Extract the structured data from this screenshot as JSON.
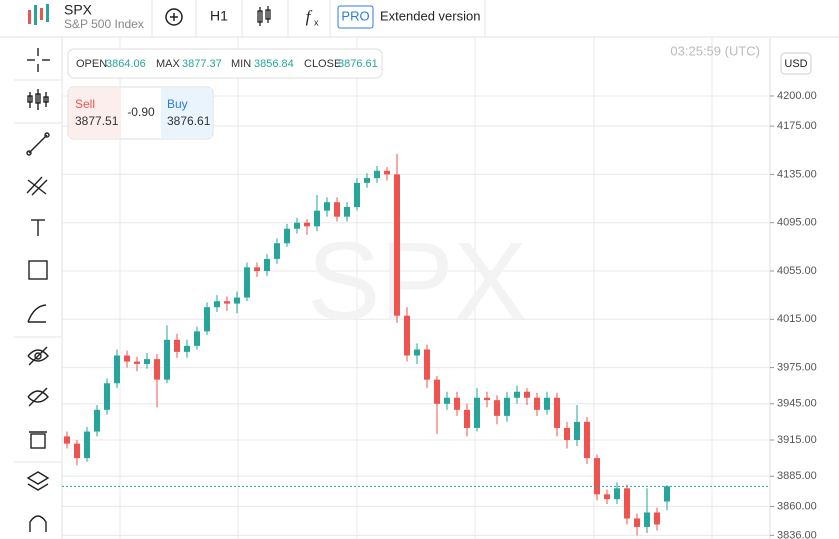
{
  "header": {
    "symbol": "SPX",
    "name": "S&P 500 Index",
    "timeframe": "H1",
    "pro": "PRO",
    "extended": "Extended version"
  },
  "ohlc_labels": {
    "open": "OPEN",
    "max": "MAX",
    "min": "MIN",
    "close": "CLOSE"
  },
  "trade": {
    "sell_label": "Sell",
    "sell": "3877.51",
    "spread": "-0.90",
    "buy_label": "Buy",
    "buy": "3876.61"
  },
  "time": "03:25:59 (UTC)",
  "currency": "USD",
  "chart_data": {
    "type": "candlestick",
    "open": [
      3918,
      3912,
      3900,
      3922,
      3940,
      3962,
      3985,
      3980,
      3978,
      3982,
      3965,
      3998,
      3988,
      3993,
      4005,
      4025,
      4030,
      4028,
      4033,
      4058,
      4055,
      4065,
      4078,
      4090,
      4095,
      4092,
      4105,
      4112,
      4100,
      4108,
      4128,
      4132,
      4138,
      4135,
      4018,
      3985,
      3990,
      3965,
      3945,
      3950,
      3940,
      3925,
      3950,
      3948,
      3935,
      3950,
      3955,
      3950,
      3940,
      3950,
      3925,
      3915,
      3930,
      3900,
      3870,
      3866,
      3875,
      3850,
      3843,
      3855,
      3864.06
    ],
    "high": [
      3922,
      3915,
      3926,
      3944,
      3966,
      3990,
      3989,
      3984,
      3987,
      3986,
      4010,
      4003,
      3998,
      4009,
      4029,
      4035,
      4034,
      4038,
      4062,
      4062,
      4069,
      4082,
      4094,
      4099,
      4098,
      4118,
      4116,
      4116,
      4112,
      4132,
      4136,
      4142,
      4141,
      4152,
      4025,
      3995,
      3994,
      3968,
      3955,
      3955,
      3945,
      3958,
      3955,
      3952,
      3955,
      3960,
      3958,
      3954,
      3955,
      3954,
      3930,
      3944,
      3934,
      3903,
      3874,
      3880,
      3878,
      3854,
      3875,
      3859,
      3877.37
    ],
    "low": [
      3908,
      3894,
      3897,
      3918,
      3936,
      3958,
      3975,
      3972,
      3974,
      3942,
      3962,
      3983,
      3983,
      3990,
      4002,
      4021,
      4022,
      4020,
      4030,
      4050,
      4051,
      4061,
      4075,
      4086,
      4085,
      4088,
      4100,
      4096,
      4096,
      4105,
      4124,
      4128,
      4130,
      4012,
      3980,
      3978,
      3958,
      3920,
      3940,
      3935,
      3918,
      3922,
      3942,
      3928,
      3930,
      3945,
      3944,
      3935,
      3936,
      3918,
      3908,
      3910,
      3895,
      3865,
      3862,
      3862,
      3845,
      3836,
      3838,
      3840,
      3856.84
    ],
    "close": [
      3912,
      3900,
      3922,
      3940,
      3962,
      3985,
      3980,
      3978,
      3982,
      3965,
      3998,
      3988,
      3993,
      4005,
      4025,
      4030,
      4028,
      4033,
      4058,
      4055,
      4065,
      4078,
      4090,
      4095,
      4092,
      4105,
      4112,
      4100,
      4108,
      4128,
      4132,
      4138,
      4135,
      4018,
      3985,
      3990,
      3965,
      3945,
      3950,
      3940,
      3925,
      3950,
      3948,
      3935,
      3950,
      3955,
      3950,
      3940,
      3950,
      3925,
      3915,
      3930,
      3900,
      3870,
      3866,
      3875,
      3850,
      3843,
      3855,
      3845,
      3876.61
    ],
    "up_color": "#26a69a",
    "down_color": "#ef5350",
    "ylim": [
      3833,
      4248
    ],
    "yticks": [
      {
        "value": 4200,
        "label": "4200.00"
      },
      {
        "value": 4175,
        "label": "4175.00"
      },
      {
        "value": 4135,
        "label": "4135.00"
      },
      {
        "value": 4095,
        "label": "4095.00"
      },
      {
        "value": 4055,
        "label": "4055.00"
      },
      {
        "value": 4015,
        "label": "4015.00"
      },
      {
        "value": 3975,
        "label": "3975.00"
      },
      {
        "value": 3945,
        "label": "3945.00"
      },
      {
        "value": 3915,
        "label": "3915.00"
      },
      {
        "value": 3885,
        "label": "3885.00"
      },
      {
        "value": 3860,
        "label": "3860.00"
      },
      {
        "value": 3836,
        "label": "3836.00"
      }
    ],
    "grid": true
  }
}
